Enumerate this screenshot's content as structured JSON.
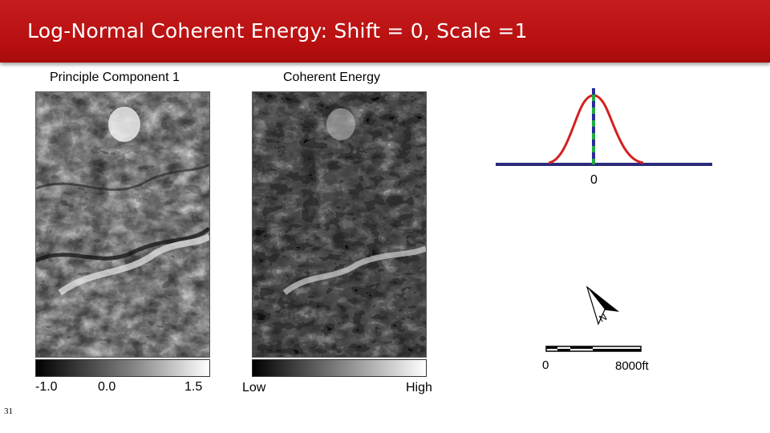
{
  "header": {
    "title": "Log-Normal Coherent Energy: Shift = 0, Scale =1",
    "background": "#b81415"
  },
  "left_panel": {
    "title": "Principle Component 1",
    "colorbar": {
      "labels": [
        "-1.0",
        "0.0",
        "1.5"
      ]
    }
  },
  "right_panel": {
    "title": "Coherent Energy",
    "colorbar": {
      "low_label": "Low",
      "high_label": "High"
    }
  },
  "distribution_plot": {
    "center_label": "0",
    "curve_color": "#d42020",
    "baseline_color": "#2b2b7a",
    "marker_colors": [
      "#22aa44",
      "#2b2b9a"
    ]
  },
  "north_arrow": {
    "label": "N"
  },
  "scale_bar": {
    "start_label": "0",
    "end_label": "8000ft"
  },
  "footer": {
    "slide_number": "31"
  }
}
